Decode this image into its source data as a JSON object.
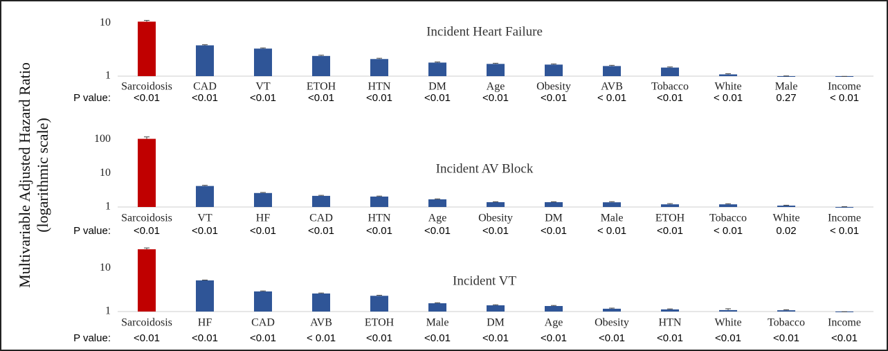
{
  "y_label": [
    "Multivariable Adjusted Hazard Ratio",
    "(logarithmic scale)"
  ],
  "chart_data": [
    {
      "type": "bar",
      "title": "Incident Heart Failure",
      "log_scale": true,
      "categories": [
        "Sarcoidosis",
        "CAD",
        "VT",
        "ETOH",
        "HTN",
        "DM",
        "Age",
        "Obesity",
        "AVB",
        "Tobacco",
        "White",
        "Male",
        "Income"
      ],
      "values": [
        10.6,
        3.8,
        3.3,
        2.4,
        2.1,
        1.8,
        1.7,
        1.65,
        1.55,
        1.45,
        1.08,
        0.99,
        0.97
      ],
      "errors": [
        0.6,
        0.1,
        0.1,
        0.08,
        0.07,
        0.05,
        0.05,
        0.05,
        0.05,
        0.04,
        0.03,
        0.02,
        0.02
      ],
      "colors": [
        "#c00000",
        "#2f5597",
        "#2f5597",
        "#2f5597",
        "#2f5597",
        "#2f5597",
        "#2f5597",
        "#2f5597",
        "#2f5597",
        "#2f5597",
        "#2f5597",
        "#2f5597",
        "#2f5597"
      ],
      "p_label": "P value:",
      "p_values": [
        "<0.01",
        "<0.01",
        "<0.01",
        "<0.01",
        "<0.01",
        "<0.01",
        "<0.01",
        "<0.01",
        "< 0.01",
        "<0.01",
        "< 0.01",
        "0.27",
        "< 0.01"
      ],
      "ylim": [
        1,
        14
      ],
      "yticks": [
        1,
        10
      ]
    },
    {
      "type": "bar",
      "title": "Incident AV Block",
      "log_scale": true,
      "categories": [
        "Sarcoidosis",
        "VT",
        "HF",
        "CAD",
        "HTN",
        "Age",
        "Obesity",
        "DM",
        "Male",
        "ETOH",
        "Tobacco",
        "White",
        "Income"
      ],
      "values": [
        105,
        4.2,
        2.6,
        2.14,
        2.04,
        1.69,
        1.39,
        1.39,
        1.38,
        1.2,
        1.2,
        1.1,
        1.0
      ],
      "errors": [
        15,
        0.2,
        0.1,
        0.08,
        0.07,
        0.05,
        0.04,
        0.04,
        0.06,
        0.06,
        0.05,
        0.03,
        0.02
      ],
      "colors": [
        "#c00000",
        "#2f5597",
        "#2f5597",
        "#2f5597",
        "#2f5597",
        "#2f5597",
        "#2f5597",
        "#2f5597",
        "#2f5597",
        "#2f5597",
        "#2f5597",
        "#2f5597",
        "#2f5597"
      ],
      "p_label": "P value:",
      "p_values": [
        "<0.01",
        "<0.01",
        "<0.01",
        "<0.01",
        "<0.01",
        "<0.01",
        "<0.01",
        "<0.01",
        "< 0.01",
        "<0.01",
        "< 0.01",
        "0.02",
        "< 0.01"
      ],
      "ylim": [
        1,
        150
      ],
      "yticks": [
        1,
        10,
        100
      ]
    },
    {
      "type": "bar",
      "title": "Incident VT",
      "log_scale": true,
      "categories": [
        "Sarcoidosis",
        "HF",
        "CAD",
        "AVB",
        "ETOH",
        "Male",
        "DM",
        "Age",
        "Obesity",
        "HTN",
        "White",
        "Tobacco",
        "Income"
      ],
      "values": [
        27,
        5.2,
        2.9,
        2.6,
        2.3,
        1.55,
        1.39,
        1.34,
        1.16,
        1.12,
        1.08,
        1.07,
        0.97
      ],
      "errors": [
        2,
        0.1,
        0.08,
        0.07,
        0.07,
        0.04,
        0.04,
        0.04,
        0.04,
        0.03,
        0.08,
        0.03,
        0.02
      ],
      "colors": [
        "#c00000",
        "#2f5597",
        "#2f5597",
        "#2f5597",
        "#2f5597",
        "#2f5597",
        "#2f5597",
        "#2f5597",
        "#2f5597",
        "#2f5597",
        "#2f5597",
        "#2f5597",
        "#2f5597"
      ],
      "p_label": "P value:",
      "p_values": [
        "<0.01",
        "<0.01",
        "<0.01",
        "< 0.01",
        "<0.01",
        "<0.01",
        "<0.01",
        "<0.01",
        "<0.01",
        "<0.01",
        "<0.01",
        "<0.01",
        "<0.01"
      ],
      "ylim": [
        1,
        35
      ],
      "yticks": [
        1,
        10
      ]
    }
  ]
}
